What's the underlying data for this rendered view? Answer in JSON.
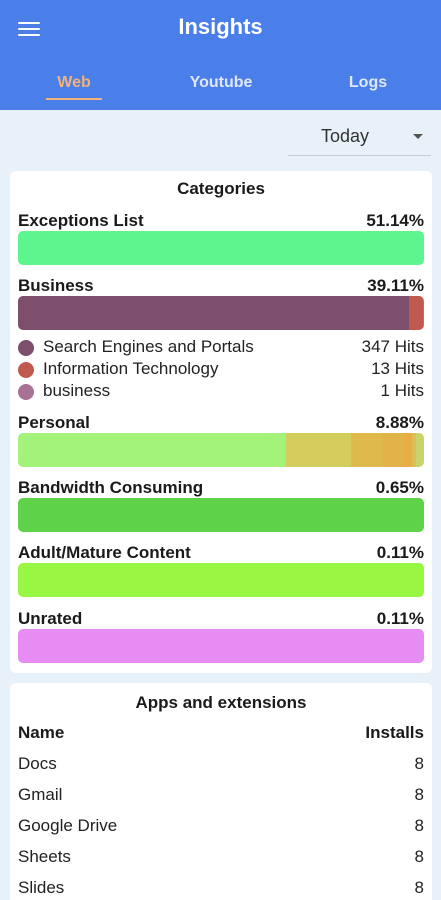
{
  "header": {
    "title": "Insights",
    "tabs": [
      {
        "label": "Web",
        "active": true
      },
      {
        "label": "Youtube",
        "active": false
      },
      {
        "label": "Logs",
        "active": false
      }
    ]
  },
  "period": {
    "selected": "Today"
  },
  "categories": {
    "title": "Categories",
    "items": [
      {
        "name": "Exceptions List",
        "percent": "51.14%",
        "segments": [
          {
            "color": "#5df58e",
            "fraction": 1.0
          }
        ]
      },
      {
        "name": "Business",
        "percent": "39.11%",
        "segments": [
          {
            "color": "#7d4f6d",
            "fraction": 0.962
          },
          {
            "color": "#c05a4e",
            "fraction": 0.035
          },
          {
            "color": "#a97196",
            "fraction": 0.003
          }
        ]
      },
      {
        "name": "Personal",
        "percent": "8.88%",
        "segments": [
          {
            "color": "#a3f37a",
            "fraction": 0.66
          },
          {
            "color": "#d3cd5e",
            "fraction": 0.16
          },
          {
            "color": "#dfb94b",
            "fraction": 0.08
          },
          {
            "color": "#e2b349",
            "fraction": 0.05
          },
          {
            "color": "#e8ae45",
            "fraction": 0.02
          },
          {
            "color": "#dcc055",
            "fraction": 0.01
          },
          {
            "color": "#c9d36a",
            "fraction": 0.02
          }
        ]
      },
      {
        "name": "Bandwidth Consuming",
        "percent": "0.65%",
        "segments": [
          {
            "color": "#5ed34a",
            "fraction": 1.0
          }
        ]
      },
      {
        "name": "Adult/Mature Content",
        "percent": "0.11%",
        "segments": [
          {
            "color": "#98f743",
            "fraction": 1.0
          }
        ]
      },
      {
        "name": "Unrated",
        "percent": "0.11%",
        "segments": [
          {
            "color": "#e68cf2",
            "fraction": 1.0
          }
        ]
      }
    ],
    "business_breakdown": [
      {
        "label": "Search Engines and Portals",
        "hits": "347 Hits",
        "color": "#7d4f6d"
      },
      {
        "label": "Information Technology",
        "hits": "13 Hits",
        "color": "#c05a4e"
      },
      {
        "label": "business",
        "hits": "1 Hits",
        "color": "#a97196"
      }
    ]
  },
  "apps": {
    "title": "Apps and extensions",
    "columns": {
      "name": "Name",
      "installs": "Installs"
    },
    "rows": [
      {
        "name": "Docs",
        "installs": "8"
      },
      {
        "name": "Gmail",
        "installs": "8"
      },
      {
        "name": "Google Drive",
        "installs": "8"
      },
      {
        "name": "Sheets",
        "installs": "8"
      },
      {
        "name": "Slides",
        "installs": "8"
      }
    ]
  }
}
